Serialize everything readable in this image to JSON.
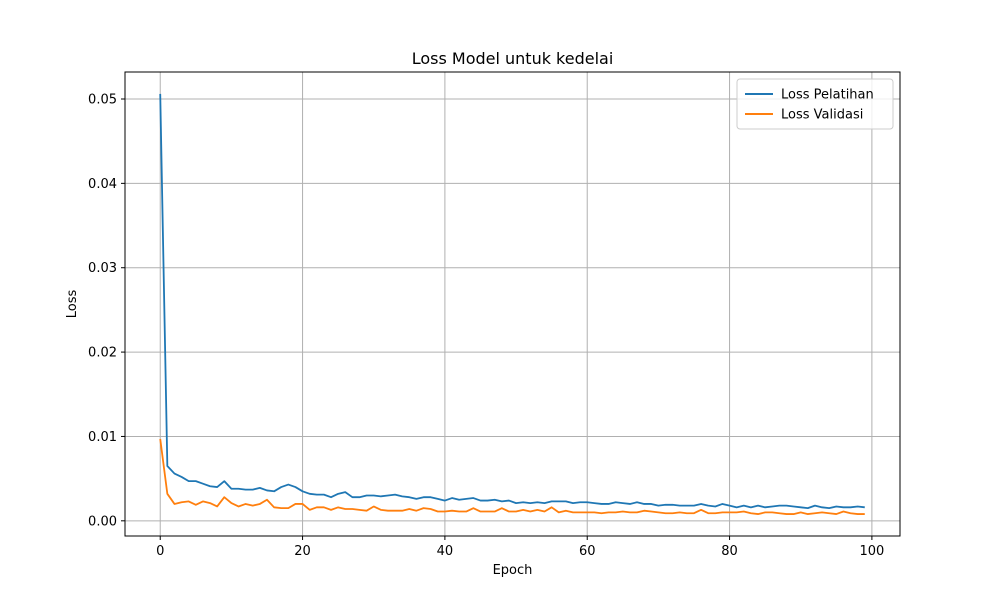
{
  "chart_data": {
    "type": "line",
    "title": "Loss Model untuk kedelai",
    "xlabel": "Epoch",
    "ylabel": "Loss",
    "xlim": [
      -4.95,
      103.95
    ],
    "ylim": [
      -0.0018,
      0.0532
    ],
    "xticks": [
      0,
      20,
      40,
      60,
      80,
      100
    ],
    "yticks": [
      0.0,
      0.01,
      0.02,
      0.03,
      0.04,
      0.05
    ],
    "ytick_labels": [
      "0.00",
      "0.01",
      "0.02",
      "0.03",
      "0.04",
      "0.05"
    ],
    "grid": true,
    "legend_position": "top-right",
    "series": [
      {
        "name": "Loss Pelatihan",
        "color": "#1f77b4",
        "values": [
          0.0506,
          0.0065,
          0.0056,
          0.0052,
          0.0047,
          0.0047,
          0.0044,
          0.0041,
          0.004,
          0.0047,
          0.0038,
          0.0038,
          0.0037,
          0.0037,
          0.0039,
          0.0036,
          0.0035,
          0.004,
          0.0043,
          0.004,
          0.0035,
          0.0032,
          0.0031,
          0.0031,
          0.0028,
          0.0032,
          0.0034,
          0.0028,
          0.0028,
          0.003,
          0.003,
          0.0029,
          0.003,
          0.0031,
          0.0029,
          0.0028,
          0.0026,
          0.0028,
          0.0028,
          0.0026,
          0.0024,
          0.0027,
          0.0025,
          0.0026,
          0.0027,
          0.0024,
          0.0024,
          0.0025,
          0.0023,
          0.0024,
          0.0021,
          0.0022,
          0.0021,
          0.0022,
          0.0021,
          0.0023,
          0.0023,
          0.0023,
          0.0021,
          0.0022,
          0.0022,
          0.0021,
          0.002,
          0.002,
          0.0022,
          0.0021,
          0.002,
          0.0022,
          0.002,
          0.002,
          0.0018,
          0.0019,
          0.0019,
          0.0018,
          0.0018,
          0.0018,
          0.002,
          0.0018,
          0.0017,
          0.002,
          0.0018,
          0.0016,
          0.0018,
          0.0016,
          0.0018,
          0.0016,
          0.0017,
          0.0018,
          0.0018,
          0.0017,
          0.0016,
          0.0015,
          0.0018,
          0.0016,
          0.0015,
          0.0017,
          0.0016,
          0.0016,
          0.0017,
          0.0016
        ]
      },
      {
        "name": "Loss Validasi",
        "color": "#ff7f0e",
        "values": [
          0.0097,
          0.0032,
          0.002,
          0.0022,
          0.0023,
          0.0019,
          0.0023,
          0.0021,
          0.0017,
          0.0028,
          0.0021,
          0.0017,
          0.002,
          0.0018,
          0.002,
          0.0025,
          0.0016,
          0.0015,
          0.0015,
          0.002,
          0.002,
          0.0013,
          0.0016,
          0.0016,
          0.0013,
          0.0016,
          0.0014,
          0.0014,
          0.0013,
          0.0012,
          0.0017,
          0.0013,
          0.0012,
          0.0012,
          0.0012,
          0.0014,
          0.0012,
          0.0015,
          0.0014,
          0.0011,
          0.0011,
          0.0012,
          0.0011,
          0.0011,
          0.0015,
          0.0011,
          0.0011,
          0.0011,
          0.0015,
          0.0011,
          0.0011,
          0.0013,
          0.0011,
          0.0013,
          0.0011,
          0.0016,
          0.001,
          0.0012,
          0.001,
          0.001,
          0.001,
          0.001,
          0.0009,
          0.001,
          0.001,
          0.0011,
          0.001,
          0.001,
          0.0012,
          0.0011,
          0.001,
          0.0009,
          0.0009,
          0.001,
          0.0009,
          0.0009,
          0.0013,
          0.0009,
          0.0009,
          0.001,
          0.001,
          0.001,
          0.0011,
          0.0009,
          0.0008,
          0.001,
          0.001,
          0.0009,
          0.0008,
          0.0008,
          0.001,
          0.0008,
          0.0009,
          0.001,
          0.0009,
          0.0008,
          0.0011,
          0.0009,
          0.0008,
          0.0008
        ]
      }
    ]
  }
}
